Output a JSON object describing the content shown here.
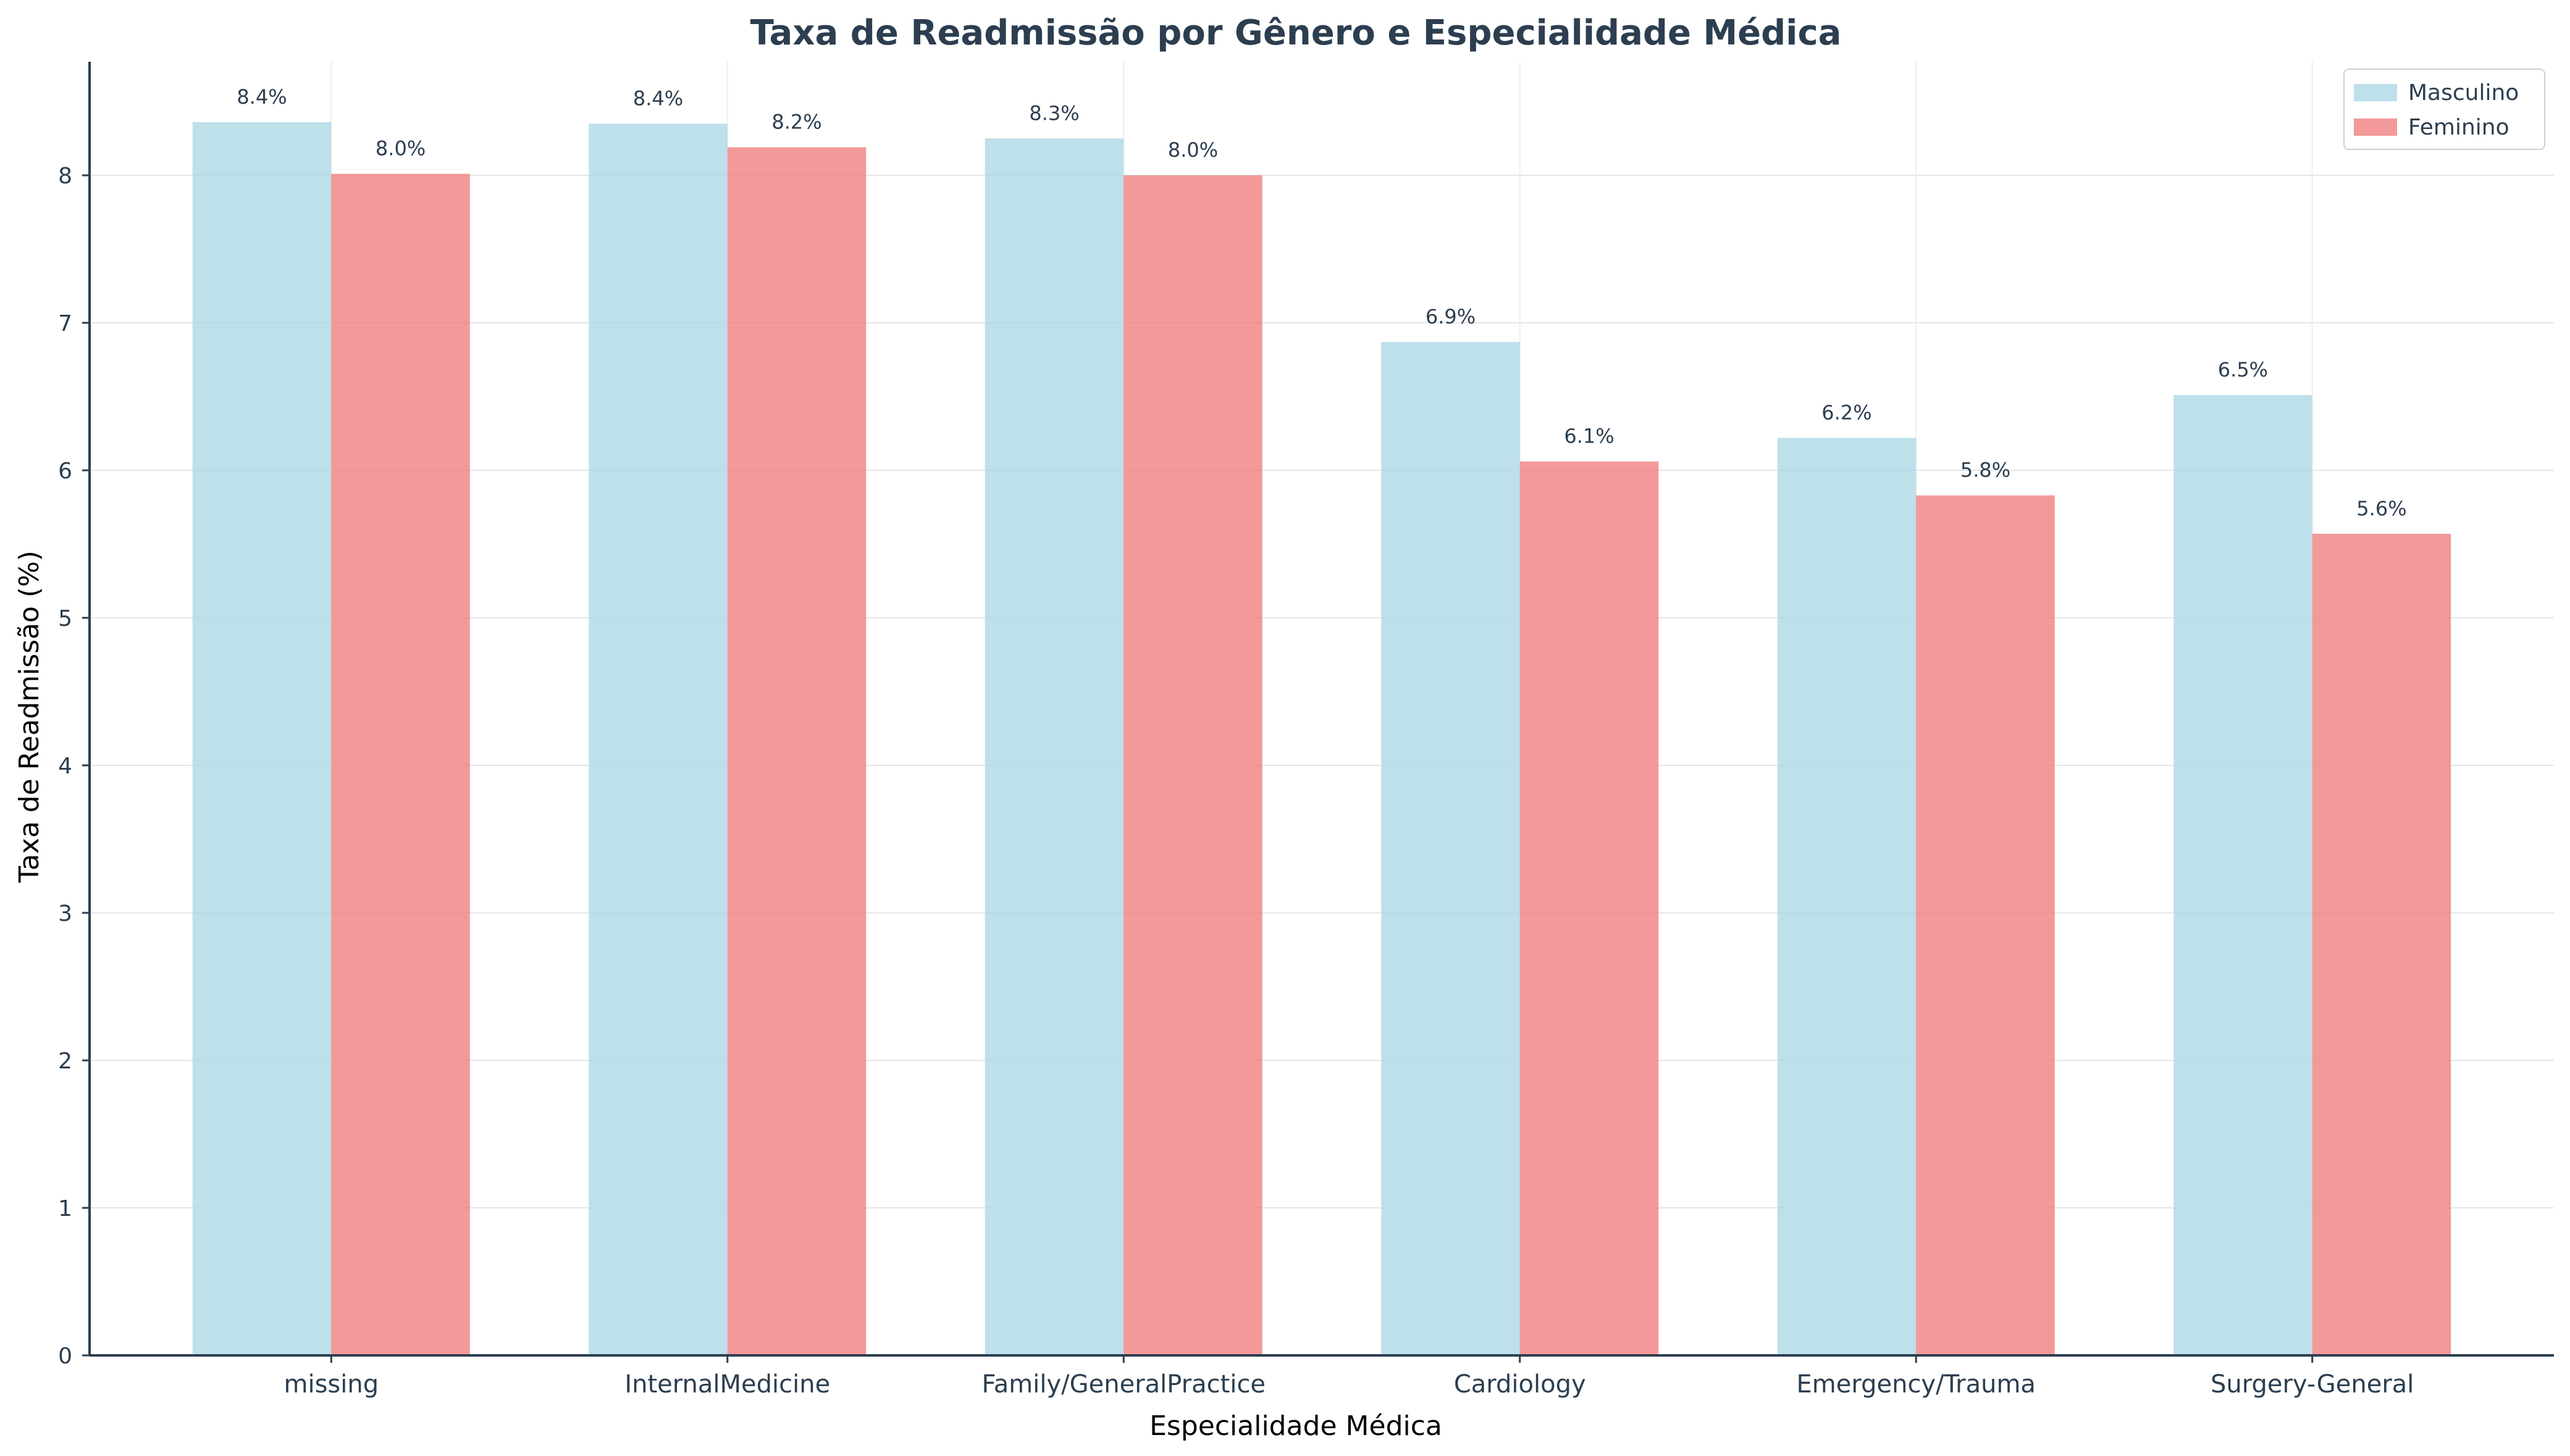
{
  "chart_data": {
    "type": "bar",
    "title": "Taxa de Readmissão por Gênero e Especialidade Médica",
    "xlabel": "Especialidade Médica",
    "ylabel": "Taxa de Readmissão (%)",
    "categories": [
      "missing",
      "InternalMedicine",
      "Family/GeneralPractice",
      "Cardiology",
      "Emergency/Trauma",
      "Surgery-General"
    ],
    "series": [
      {
        "name": "Masculino",
        "color": "#add8e6",
        "values": [
          8.36,
          8.35,
          8.25,
          6.87,
          6.22,
          6.51
        ],
        "labels": [
          "8.4%",
          "8.4%",
          "8.3%",
          "6.9%",
          "6.2%",
          "6.5%"
        ]
      },
      {
        "name": "Feminino",
        "color": "#f08080",
        "values": [
          8.01,
          8.19,
          8.0,
          6.06,
          5.83,
          5.57
        ],
        "labels": [
          "8.0%",
          "8.2%",
          "8.0%",
          "6.1%",
          "5.8%",
          "5.6%"
        ]
      }
    ],
    "ylim": [
      0,
      8.77
    ],
    "yticks": [
      0,
      1,
      2,
      3,
      4,
      5,
      6,
      7,
      8
    ],
    "grid": true,
    "legend_position": "top-right"
  }
}
